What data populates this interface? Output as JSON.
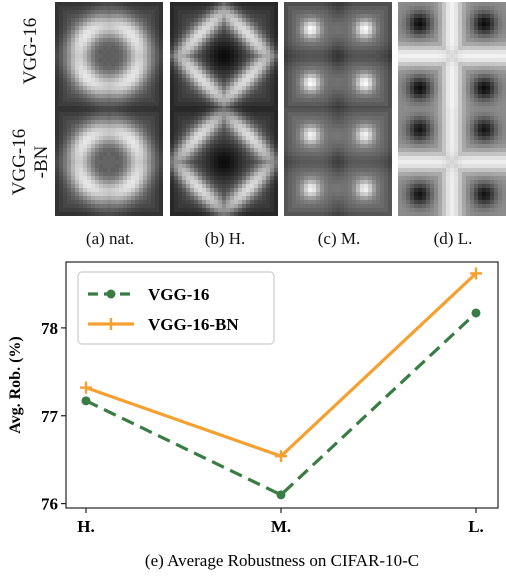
{
  "heatmap_grid": {
    "row_labels": [
      "VGG-16",
      "VGG-16-BN"
    ],
    "row_label_lines": [
      [
        "VGG-16"
      ],
      [
        "VGG-16",
        "-BN"
      ]
    ],
    "captions": [
      "(a) nat.",
      "(b) H.",
      "(c) M.",
      "(d) L."
    ],
    "pattern_names": [
      "natural",
      "high",
      "medium",
      "low"
    ]
  },
  "chart_data": {
    "type": "line",
    "title": "",
    "caption": "(e) Average Robustness on CIFAR-10-C",
    "xlabel": "",
    "ylabel": "Avg. Rob. (%)",
    "categories": [
      "H.",
      "M.",
      "L."
    ],
    "ylim": [
      75.95,
      78.75
    ],
    "yticks": [
      76,
      77,
      78
    ],
    "grid": false,
    "legend_position": "upper-left",
    "series": [
      {
        "name": "VGG-16",
        "values": [
          77.17,
          76.1,
          78.17
        ],
        "color": "#3a7d44",
        "linestyle": "dashed",
        "marker": "circle"
      },
      {
        "name": "VGG-16-BN",
        "values": [
          77.32,
          76.54,
          78.62
        ],
        "color": "#f5a030",
        "linestyle": "solid",
        "marker": "plus"
      }
    ]
  }
}
